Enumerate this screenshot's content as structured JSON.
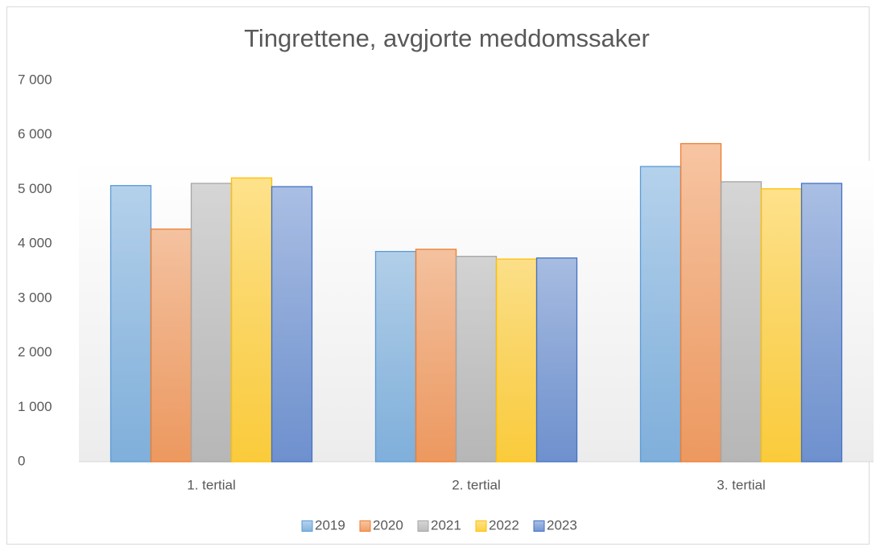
{
  "chart_data": {
    "type": "bar",
    "title": "Tingrettene, avgjorte meddomssaker",
    "categories": [
      "1. tertial",
      "2. tertial",
      "3. tertial"
    ],
    "series": [
      {
        "name": "2019",
        "color": "#5b9bd5",
        "values": [
          5070,
          3860,
          5420
        ]
      },
      {
        "name": "2020",
        "color": "#ed7d31",
        "values": [
          4270,
          3900,
          5840
        ]
      },
      {
        "name": "2021",
        "color": "#a5a5a5",
        "values": [
          5110,
          3770,
          5140
        ]
      },
      {
        "name": "2022",
        "color": "#ffc000",
        "values": [
          5210,
          3720,
          5010
        ]
      },
      {
        "name": "2023",
        "color": "#4472c4",
        "values": [
          5050,
          3740,
          5110
        ]
      }
    ],
    "ylim": [
      0,
      7000
    ],
    "yticks": [
      0,
      {
        "value": 1000,
        "label": "1 000"
      },
      {
        "value": 2000,
        "label": "2 000"
      },
      {
        "value": 3000,
        "label": "3 000"
      },
      {
        "value": 4000,
        "label": "4 000"
      },
      {
        "value": 5000,
        "label": "5 000"
      },
      {
        "value": 6000,
        "label": "6 000"
      },
      {
        "value": 7000,
        "label": "7 000"
      }
    ],
    "legend": "bottom"
  }
}
